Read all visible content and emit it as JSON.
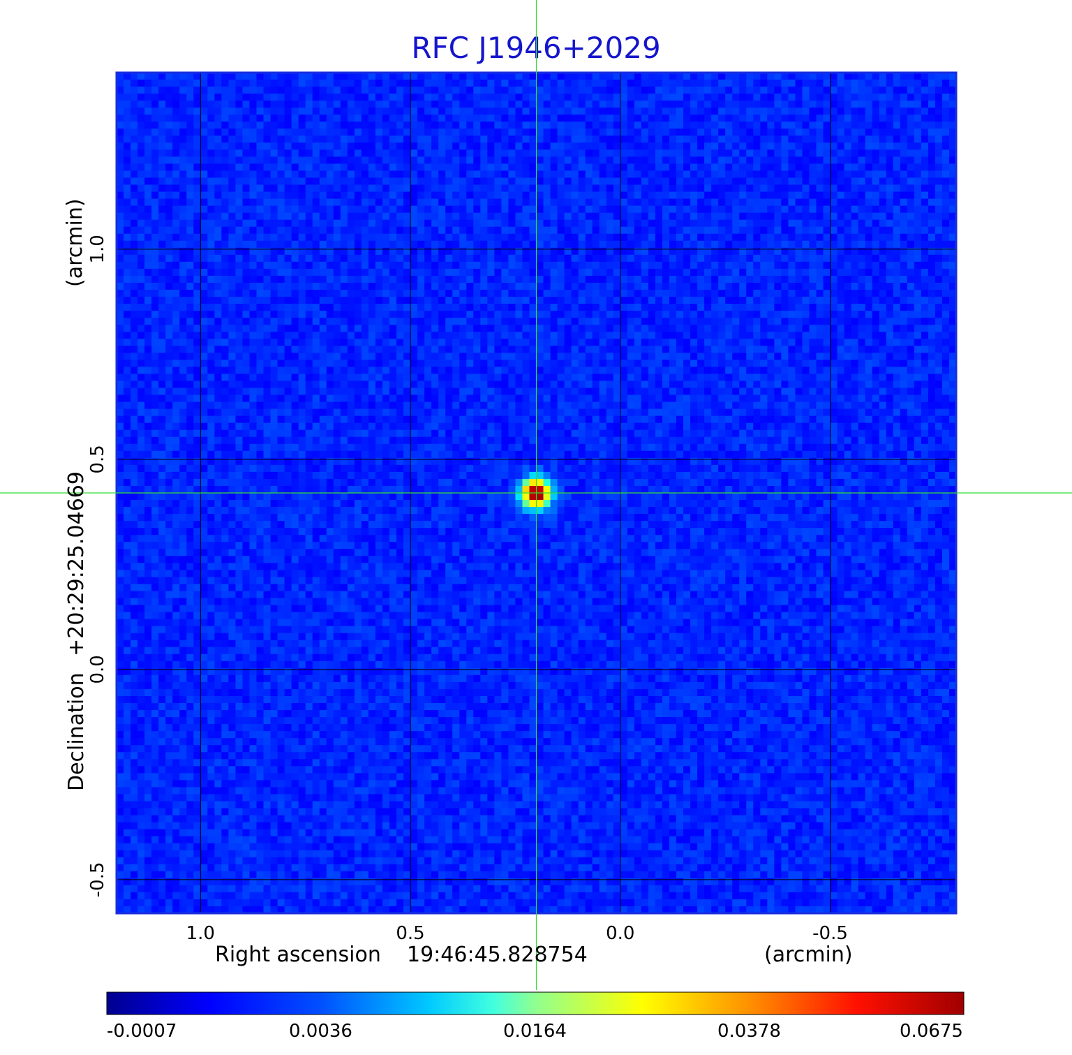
{
  "chart_data": {
    "type": "heatmap",
    "title": "RFC J1946+2029",
    "x_axis": {
      "label": "Right ascension",
      "center_label": "19:46:45.828754",
      "unit_label": "(arcmin)",
      "ticks": [
        1.0,
        0.5,
        0.0,
        -0.5
      ],
      "tick_labels": [
        "1.0",
        "0.5",
        "0.0",
        "-0.5"
      ],
      "range": [
        1.2,
        -0.8
      ]
    },
    "y_axis": {
      "label": "Declination",
      "center_label": "+20:29:25.04669",
      "unit_label": "(arcmin)",
      "ticks": [
        -0.5,
        0.0,
        0.5,
        1.0
      ],
      "tick_labels": [
        "-0.5",
        "0.0",
        "0.5",
        "1.0"
      ],
      "range": [
        -0.58,
        1.42
      ]
    },
    "grid": true,
    "source_peak": {
      "x": 0.2,
      "y": 0.42,
      "value": 0.0675
    },
    "crosshair": {
      "x": 0.2,
      "y": 0.42
    },
    "colorbar": {
      "ticks": [
        -0.0007,
        0.0036,
        0.0164,
        0.0378,
        0.0675
      ],
      "tick_labels": [
        "-0.0007",
        "0.0036",
        "0.0164",
        "0.0378",
        "0.0675"
      ],
      "colormap": "jet"
    }
  },
  "colors": {
    "title": "#1515cc",
    "background_map": "#1040f0",
    "grid": "#000000",
    "crosshair": "#33dd33",
    "frame": "#1a2ee0"
  }
}
